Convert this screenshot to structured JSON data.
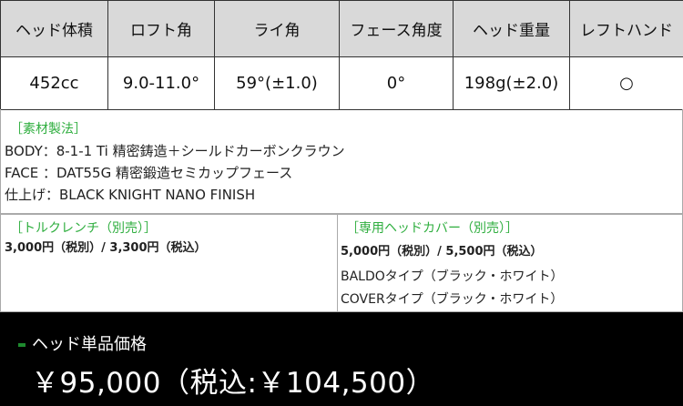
{
  "spec_table": {
    "headers": [
      "ヘッド体積",
      "ロフト角",
      "ライ角",
      "フェース角度",
      "ヘッド重量",
      "レフトハンド"
    ],
    "values": [
      "452cc",
      "9.0-11.0°",
      "59°(±1.0)",
      "0°",
      "198g(±2.0)",
      "○"
    ]
  },
  "materials": {
    "title": "［素材製法］",
    "lines": [
      "BODY：8-1-1 Ti 精密鋳造＋シールドカーボンクラウン",
      "FACE ：DAT55G 精密鍛造セミカップフェース",
      "仕上げ：BLACK KNIGHT NANO FINISH"
    ]
  },
  "torque_wrench": {
    "title": "［トルクレンチ（別売）］",
    "price": "3,000円（税別）/ 3,300円（税込）"
  },
  "head_cover": {
    "title": "［専用ヘッドカバー（別売）］",
    "price": "5,000円（税別）/ 5,500円（税込）",
    "types": [
      "BALDOタイプ（ブラック・ホワイト）",
      "COVERタイプ（ブラック・ホワイト）"
    ]
  },
  "footer": {
    "label": "ヘッド単品価格",
    "price": "￥95,000（税込:￥104,500）"
  },
  "colors": {
    "accent_green": "#2eae3e",
    "header_bg": "#d9d9d9",
    "footer_bg": "#000000"
  }
}
